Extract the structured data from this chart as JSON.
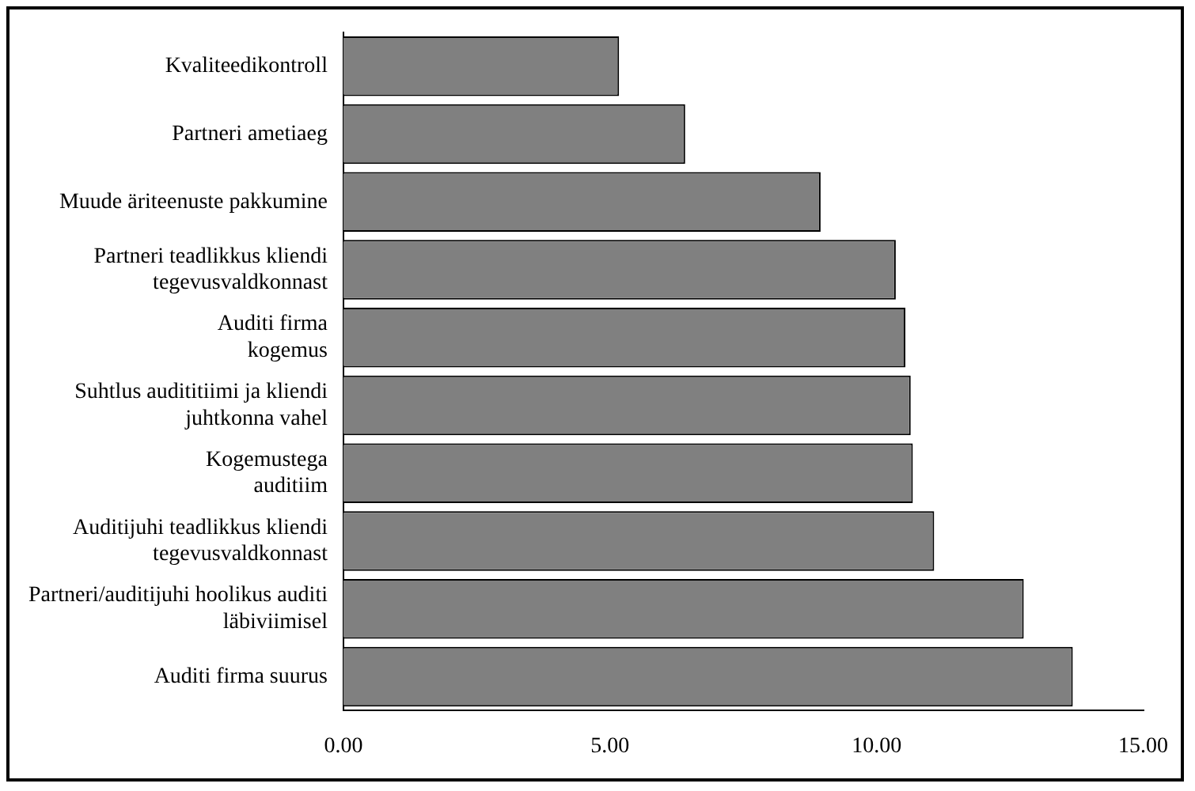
{
  "chart_data": {
    "type": "bar",
    "orientation": "horizontal",
    "categories": [
      "Kvaliteedikontroll",
      "Partneri ametiaeg",
      "Muude äriteenuste pakkumine",
      "Partneri teadlikkus kliendi\ntegevusvaldkonnast",
      "Auditi firma\nkogemus",
      "Suhtlus audititiimi ja kliendi\njuhtkonna vahel",
      "Kogemustega\nauditiim",
      "Auditijuhi teadlikkus kliendi\ntegevusvaldkonnast",
      "Partneri/auditijuhi hoolikus auditi\nläbiviimisel",
      "Auditi firma suurus"
    ],
    "values": [
      5.17,
      6.41,
      8.95,
      10.36,
      10.54,
      10.64,
      10.68,
      11.08,
      12.76,
      13.68
    ],
    "color": "#808080",
    "xlim": [
      0,
      15
    ],
    "xticks": [
      {
        "value": 0,
        "label": "0.00"
      },
      {
        "value": 5,
        "label": "5.00"
      },
      {
        "value": 10,
        "label": "10.00"
      },
      {
        "value": 15,
        "label": "15.00"
      }
    ],
    "grid": false,
    "legend": false
  }
}
